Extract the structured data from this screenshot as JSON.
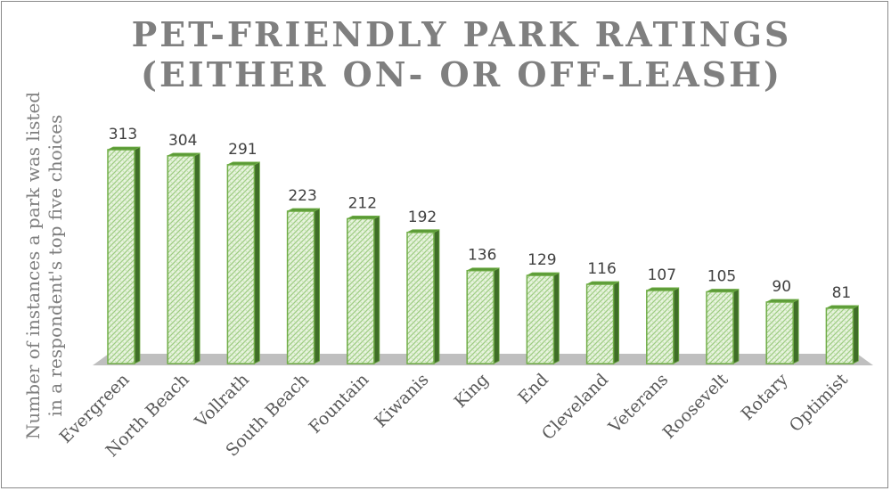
{
  "chart_data": {
    "type": "bar",
    "title_lines": [
      "PET-FRIENDLY PARK RATINGS",
      "(EITHER ON- OR OFF-LEASH)"
    ],
    "ylabel_lines": [
      "Number of instances a park was listed",
      "in a respondent's top five choices"
    ],
    "xlabel": "",
    "categories": [
      "Evergreen",
      "North Beach",
      "Vollrath",
      "South Beach",
      "Fountain",
      "Kiwanis",
      "King",
      "End",
      "Cleveland",
      "Veterans",
      "Roosevelt",
      "Rotary",
      "Optimist"
    ],
    "values": [
      313,
      304,
      291,
      223,
      212,
      192,
      136,
      129,
      116,
      107,
      105,
      90,
      81
    ],
    "ylim": [
      0,
      313
    ],
    "grid": false,
    "legend": "none",
    "style": "3d",
    "colors": {
      "bar_fill": "#e8f4df",
      "bar_pattern": "#9ccb80",
      "bar_edge": "#70ad47",
      "bar_side": "#3f6e28",
      "bar_top": "#5a9a36",
      "floor": "#bfbfbf",
      "title": "#7f7f7f",
      "labels": "#595959"
    }
  }
}
